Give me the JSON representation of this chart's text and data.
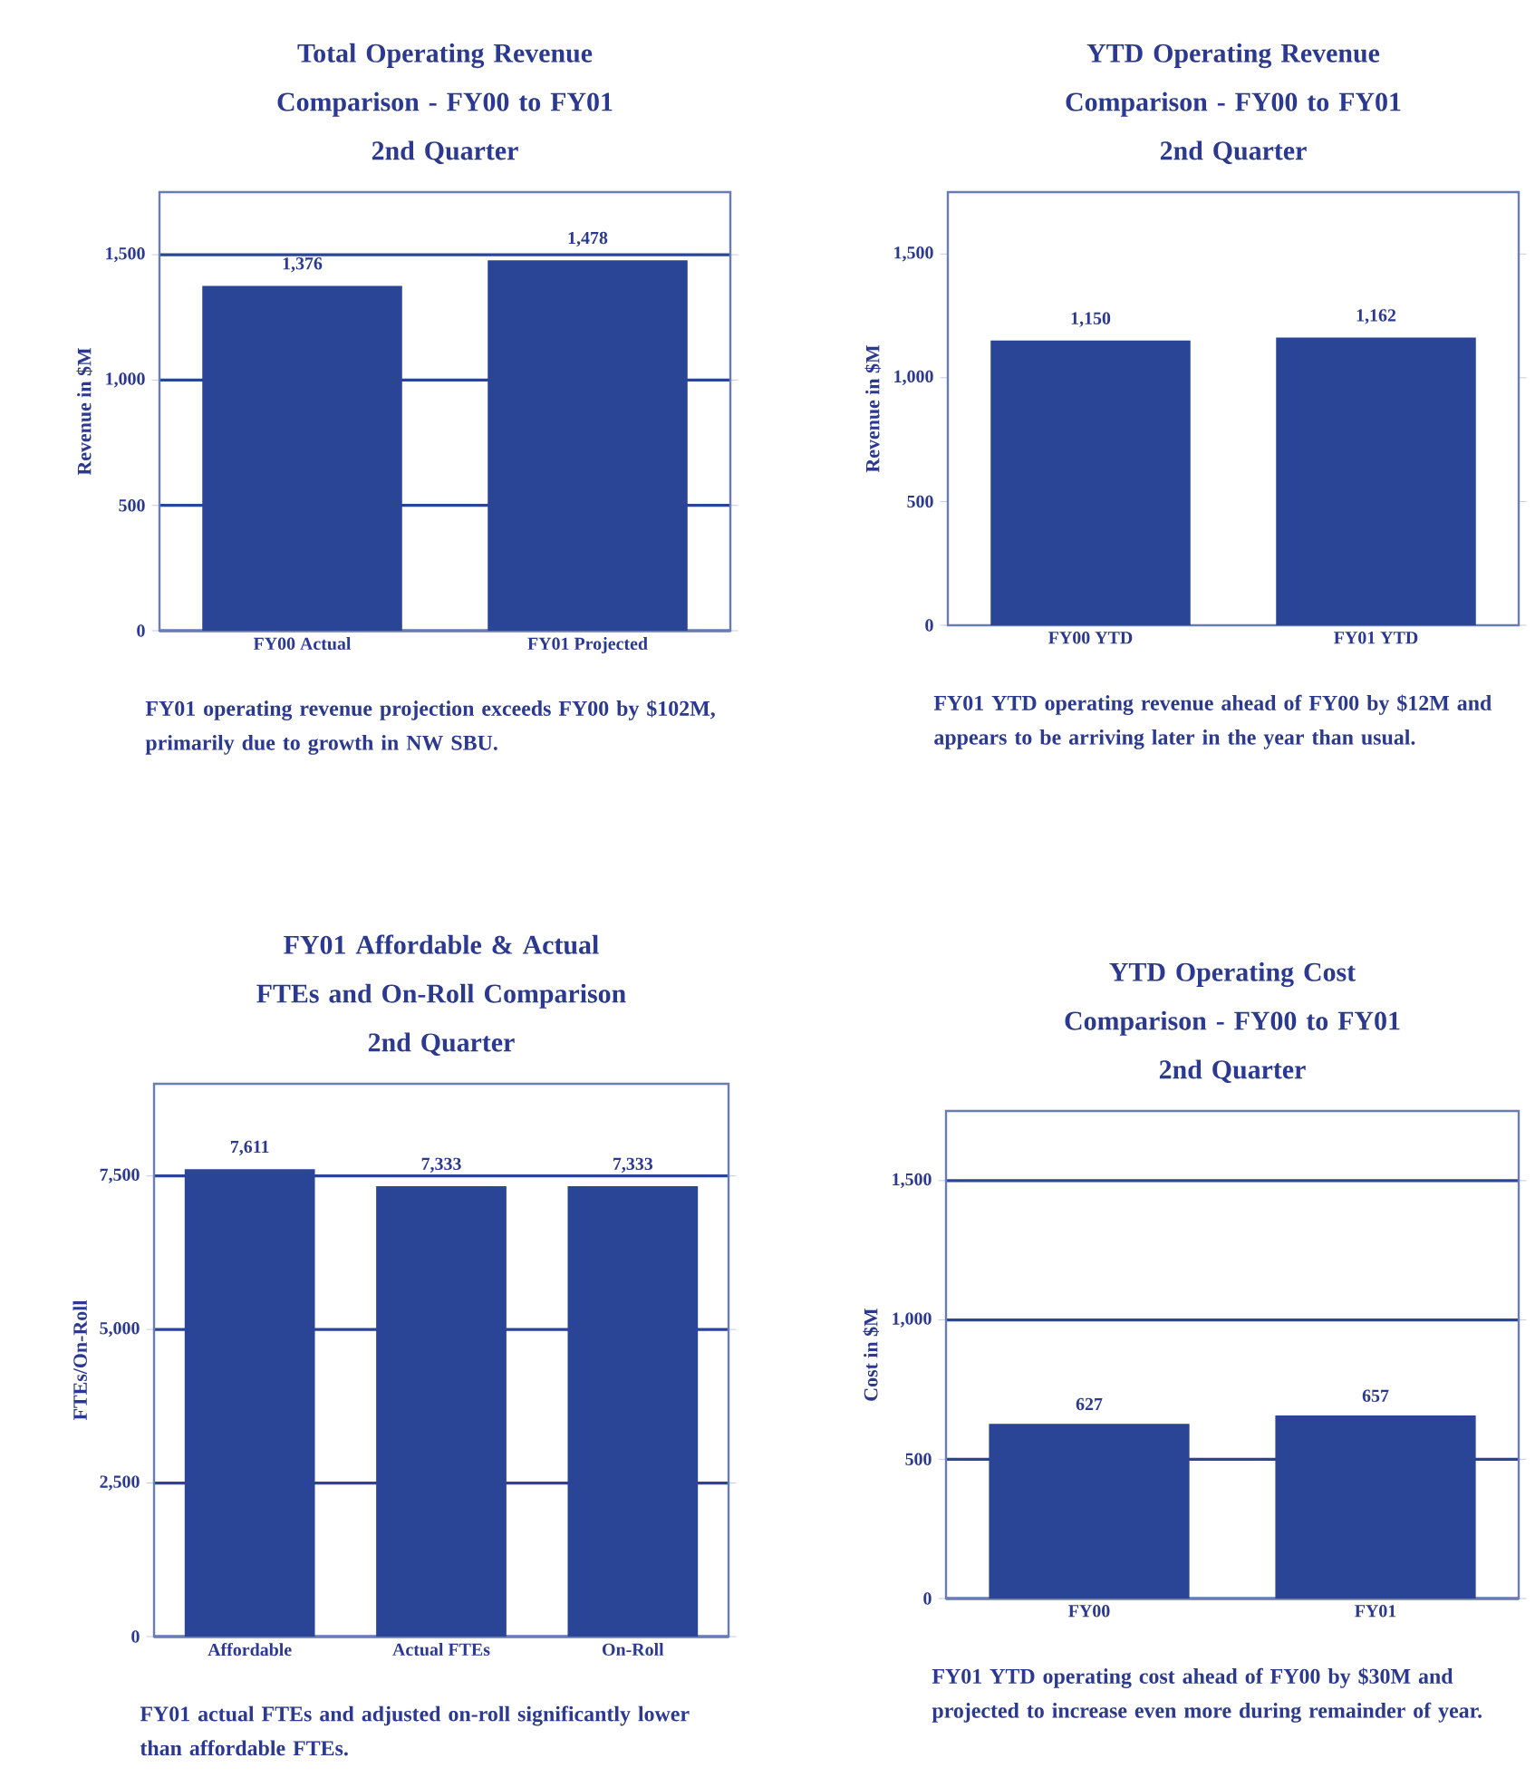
{
  "chart_data": [
    {
      "type": "bar",
      "title": "Total Operating Revenue Comparison - FY00 to FY01",
      "subtitle": "2nd Quarter",
      "ylabel": "Revenue in $M",
      "categories": [
        "FY00 Actual",
        "FY01 Projected"
      ],
      "values": [
        1376,
        1478
      ],
      "value_labels": [
        "1,376",
        "1,478"
      ],
      "color": "#2a4496",
      "ylim": [
        0,
        1750
      ],
      "yticks": [
        0,
        500,
        {
          "value": 1000,
          "label": "1,000"
        },
        {
          "value": 1500,
          "label": "1,500"
        }
      ],
      "grid": "y",
      "annotations": [
        "FY01 operating revenue projection exceeds FY00 by $102M, primarily due to growth in NW SBU."
      ]
    },
    {
      "type": "bar",
      "title": "YTD Operating Revenue Comparison - FY00 to FY01",
      "subtitle": "2nd Quarter",
      "ylabel": "Revenue in $M",
      "categories": [
        "FY00 YTD",
        "FY01 YTD"
      ],
      "values": [
        1150,
        1162
      ],
      "value_labels": [
        "1,150",
        "1,162"
      ],
      "color": "#2a4496",
      "ylim": [
        0,
        1750
      ],
      "yticks": [
        0,
        500,
        {
          "value": 1000,
          "label": "1,000"
        },
        {
          "value": 1500,
          "label": "1,500"
        }
      ],
      "annotations": [
        "FY01 YTD operating revenue ahead of FY00 by $12M and appears to be arriving later in the year than usual."
      ]
    },
    {
      "type": "bar",
      "title": "FY01 Affordable & Actual FTEs and On-Roll Comparison",
      "subtitle": "2nd Quarter",
      "ylabel": "FTEs/On-Roll",
      "categories": [
        "Affordable",
        "Actual FTEs",
        "On-Roll"
      ],
      "values": [
        7611,
        7333,
        7333
      ],
      "value_labels": [
        "7,611",
        "7,333",
        "7,333"
      ],
      "color": "#2a4496",
      "ylim": [
        0,
        9000
      ],
      "yticks": [
        0,
        {
          "value": 2500,
          "label": "2,500"
        },
        {
          "value": 5000,
          "label": "5,000"
        },
        {
          "value": 7500,
          "label": "7,500"
        }
      ],
      "grid": "y",
      "annotations": [
        "FY01 actual FTEs and adjusted on-roll significantly lower than affordable FTEs."
      ]
    },
    {
      "type": "bar",
      "title": "YTD Operating Cost Comparison - FY00 to FY01",
      "subtitle": "2nd Quarter",
      "ylabel": "Cost in $M",
      "categories": [
        "FY00",
        "FY01"
      ],
      "values": [
        627,
        657
      ],
      "data_labels": true,
      "color": "#2a4496",
      "ylim": [
        0,
        1750
      ],
      "yticks": [
        0,
        500,
        {
          "value": 1000,
          "label": "1,000"
        },
        {
          "value": 1500,
          "label": "1,500"
        }
      ],
      "grid": "y",
      "annotations": [
        "FY01 YTD operating cost ahead of FY00 by $30M and projected to increase even more during remainder of year."
      ]
    }
  ]
}
